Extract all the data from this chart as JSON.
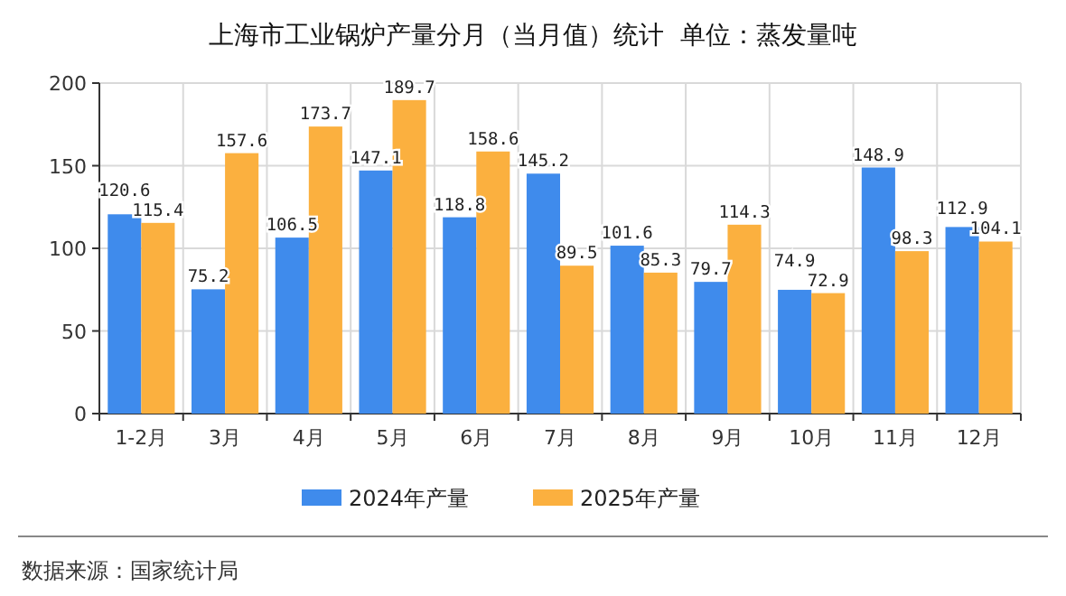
{
  "chart_data": {
    "type": "bar",
    "title": "上海市工业锅炉产量分月（当月值）统计  单位：蒸发量吨",
    "categories": [
      "1-2月",
      "3月",
      "4月",
      "5月",
      "6月",
      "7月",
      "8月",
      "9月",
      "10月",
      "11月",
      "12月"
    ],
    "series": [
      {
        "name": "2024年产量",
        "color": "#3f8bec",
        "values": [
          120.6,
          75.2,
          106.5,
          147.1,
          118.8,
          145.2,
          101.6,
          79.7,
          74.9,
          148.9,
          112.9
        ]
      },
      {
        "name": "2025年产量",
        "color": "#fbb03f",
        "values": [
          115.4,
          157.6,
          173.7,
          189.7,
          158.6,
          89.5,
          85.3,
          114.3,
          72.9,
          98.3,
          104.1
        ]
      }
    ],
    "ylim": [
      0,
      200
    ],
    "yticks": [
      0,
      50,
      100,
      150,
      200
    ],
    "grid": true,
    "legend": "bottom",
    "data_labels": true,
    "annotations": [
      "数据来源：国家统计局"
    ]
  }
}
